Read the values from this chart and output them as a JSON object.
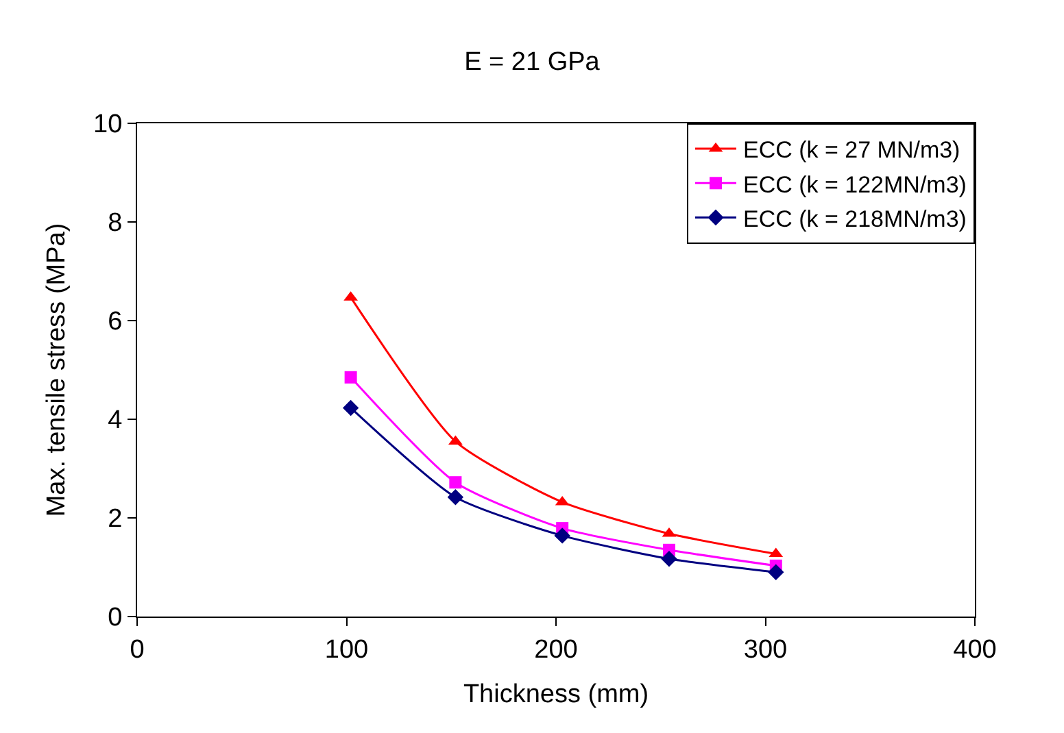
{
  "chart_data": {
    "type": "line",
    "title": "E = 21 GPa",
    "xlabel": "Thickness (mm)",
    "ylabel": "Max. tensile stress (MPa)",
    "x": [
      102,
      152,
      203,
      254,
      305
    ],
    "series": [
      {
        "name": "ECC (k = 27 MN/m3)",
        "color": "#ff0000",
        "marker": "triangle",
        "values": [
          6.47,
          3.55,
          2.32,
          1.68,
          1.27
        ]
      },
      {
        "name": "ECC (k = 122MN/m3)",
        "color": "#ff00ff",
        "marker": "square",
        "values": [
          4.85,
          2.72,
          1.79,
          1.35,
          1.03
        ]
      },
      {
        "name": "ECC (k = 218MN/m3)",
        "color": "#000080",
        "marker": "diamond",
        "values": [
          4.23,
          2.42,
          1.64,
          1.17,
          0.9
        ]
      }
    ],
    "xlim": [
      0,
      400
    ],
    "xticks": [
      0,
      100,
      200,
      300,
      400
    ],
    "ylim": [
      0,
      10
    ],
    "yticks": [
      0,
      2,
      4,
      6,
      8,
      10
    ],
    "grid": false,
    "legend": "top right",
    "line_style": "solid"
  }
}
